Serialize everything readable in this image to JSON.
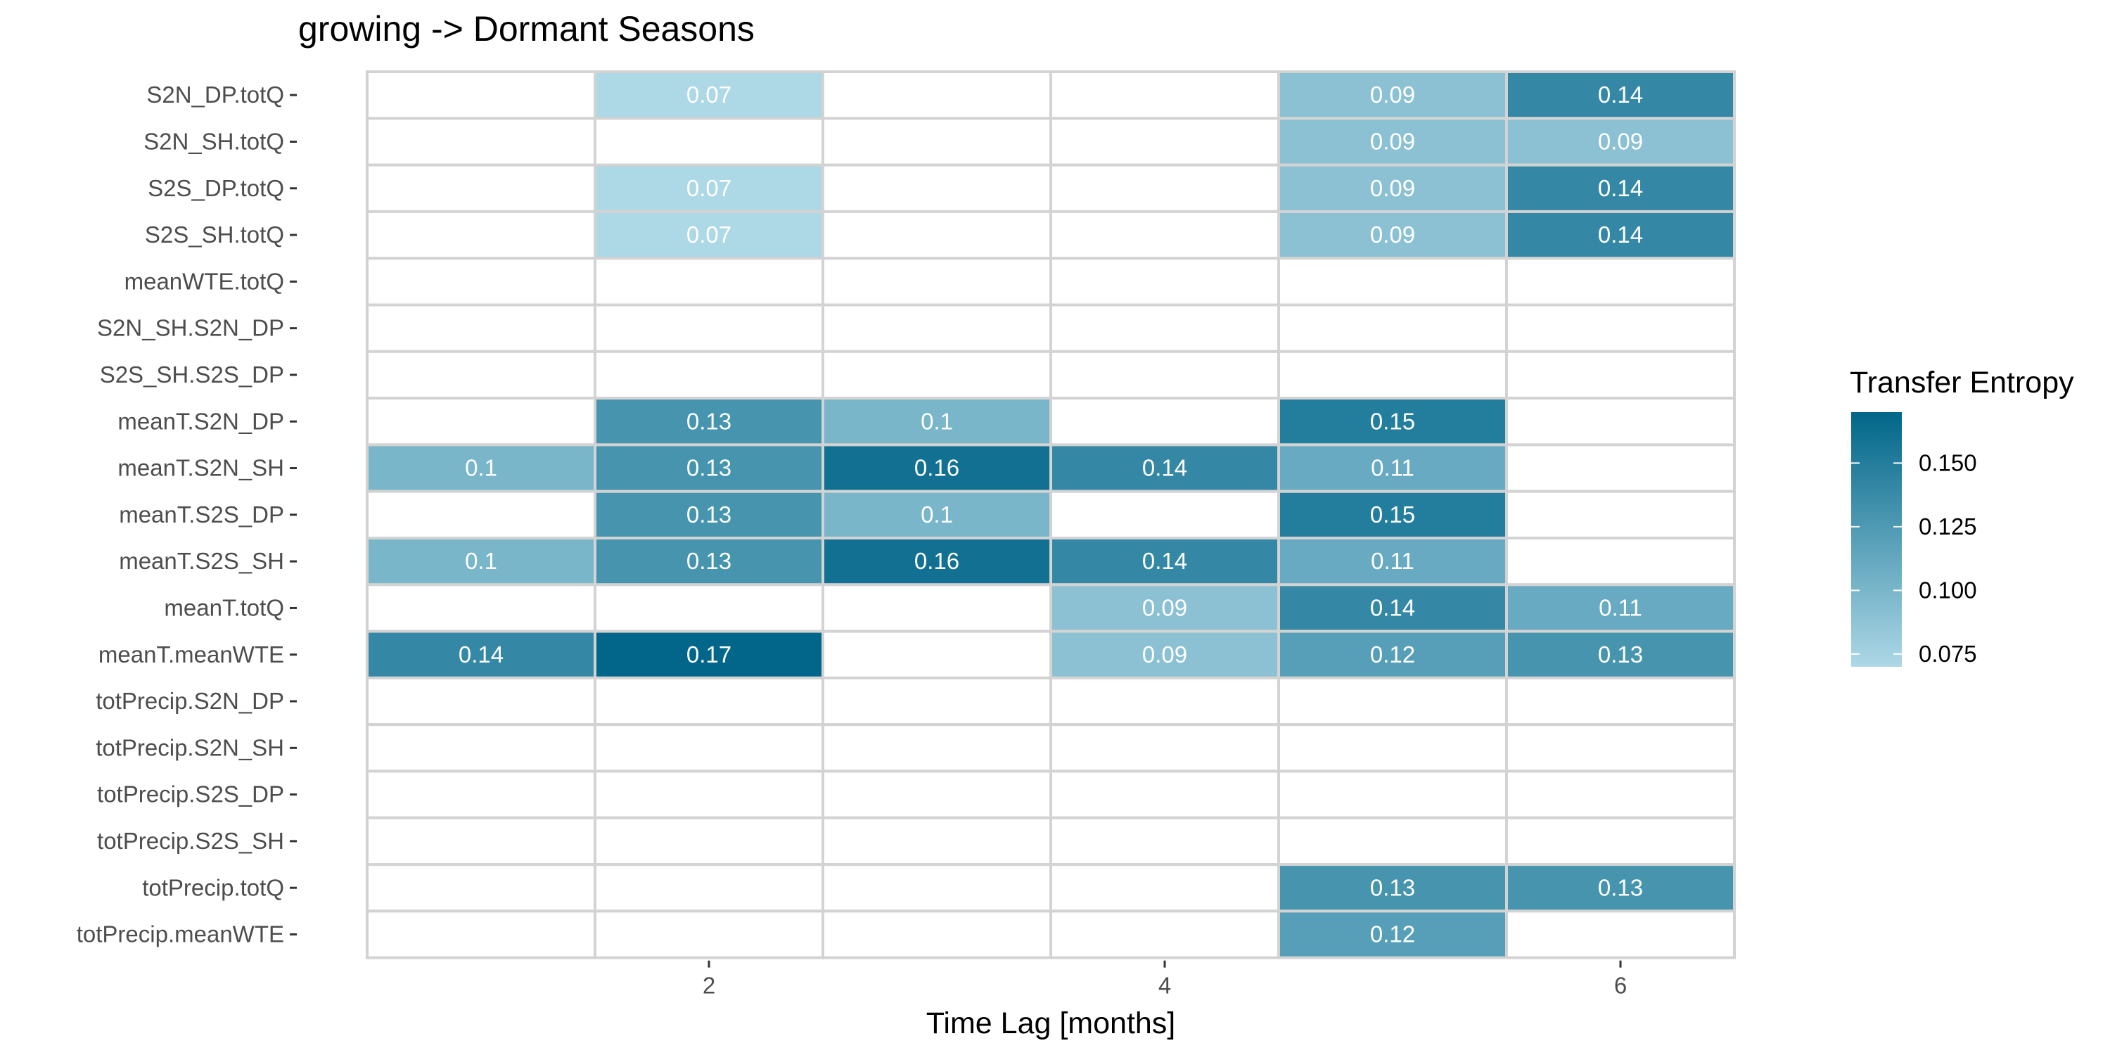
{
  "chart_data": {
    "type": "heatmap",
    "title": "growing -> Dormant Seasons",
    "xlabel": "Time Lag [months]",
    "ylabel": "",
    "x_tick_labels": [
      "2",
      "4",
      "6"
    ],
    "x_tick_values": [
      2,
      4,
      6
    ],
    "x_columns": [
      1,
      2,
      3,
      4,
      5,
      6
    ],
    "rows": [
      "S2N_DP.totQ",
      "S2N_SH.totQ",
      "S2S_DP.totQ",
      "S2S_SH.totQ",
      "meanWTE.totQ",
      "S2N_SH.S2N_DP",
      "S2S_SH.S2S_DP",
      "meanT.S2N_DP",
      "meanT.S2N_SH",
      "meanT.S2S_DP",
      "meanT.S2S_SH",
      "meanT.totQ",
      "meanT.meanWTE",
      "totPrecip.S2N_DP",
      "totPrecip.S2N_SH",
      "totPrecip.S2S_DP",
      "totPrecip.S2S_SH",
      "totPrecip.totQ",
      "totPrecip.meanWTE"
    ],
    "values": [
      [
        null,
        0.07,
        null,
        null,
        0.09,
        0.14
      ],
      [
        null,
        null,
        null,
        null,
        0.09,
        0.09
      ],
      [
        null,
        0.07,
        null,
        null,
        0.09,
        0.14
      ],
      [
        null,
        0.07,
        null,
        null,
        0.09,
        0.14
      ],
      [
        null,
        null,
        null,
        null,
        null,
        null
      ],
      [
        null,
        null,
        null,
        null,
        null,
        null
      ],
      [
        null,
        null,
        null,
        null,
        null,
        null
      ],
      [
        null,
        0.13,
        0.1,
        null,
        0.15,
        null
      ],
      [
        0.1,
        0.13,
        0.16,
        0.14,
        0.11,
        null
      ],
      [
        null,
        0.13,
        0.1,
        null,
        0.15,
        null
      ],
      [
        0.1,
        0.13,
        0.16,
        0.14,
        0.11,
        null
      ],
      [
        null,
        null,
        null,
        0.09,
        0.14,
        0.11
      ],
      [
        0.14,
        0.17,
        null,
        0.09,
        0.12,
        0.13
      ],
      [
        null,
        null,
        null,
        null,
        null,
        null
      ],
      [
        null,
        null,
        null,
        null,
        null,
        null
      ],
      [
        null,
        null,
        null,
        null,
        null,
        null
      ],
      [
        null,
        null,
        null,
        null,
        null,
        null
      ],
      [
        null,
        null,
        null,
        null,
        0.13,
        0.13
      ],
      [
        null,
        null,
        null,
        null,
        0.12,
        null
      ]
    ],
    "cell_labels": [
      [
        null,
        "0.07",
        null,
        null,
        "0.09",
        "0.14"
      ],
      [
        null,
        null,
        null,
        null,
        "0.09",
        "0.09"
      ],
      [
        null,
        "0.07",
        null,
        null,
        "0.09",
        "0.14"
      ],
      [
        null,
        "0.07",
        null,
        null,
        "0.09",
        "0.14"
      ],
      [
        null,
        null,
        null,
        null,
        null,
        null
      ],
      [
        null,
        null,
        null,
        null,
        null,
        null
      ],
      [
        null,
        null,
        null,
        null,
        null,
        null
      ],
      [
        null,
        "0.13",
        "0.1",
        null,
        "0.15",
        null
      ],
      [
        "0.1",
        "0.13",
        "0.16",
        "0.14",
        "0.11",
        null
      ],
      [
        null,
        "0.13",
        "0.1",
        null,
        "0.15",
        null
      ],
      [
        "0.1",
        "0.13",
        "0.16",
        "0.14",
        "0.11",
        null
      ],
      [
        null,
        null,
        null,
        "0.09",
        "0.14",
        "0.11"
      ],
      [
        "0.14",
        "0.17",
        null,
        "0.09",
        "0.12",
        "0.13"
      ],
      [
        null,
        null,
        null,
        null,
        null,
        null
      ],
      [
        null,
        null,
        null,
        null,
        null,
        null
      ],
      [
        null,
        null,
        null,
        null,
        null,
        null
      ],
      [
        null,
        null,
        null,
        null,
        null,
        null
      ],
      [
        null,
        null,
        null,
        null,
        "0.13",
        "0.13"
      ],
      [
        null,
        null,
        null,
        null,
        "0.12",
        null
      ]
    ],
    "legend": {
      "title": "Transfer Entropy",
      "position": "right",
      "ticks": [
        0.075,
        0.1,
        0.125,
        0.15
      ],
      "tick_labels": [
        "0.075",
        "0.100",
        "0.125",
        "0.150"
      ],
      "range": [
        0.07,
        0.17
      ],
      "color_low": "#add8e6",
      "color_high": "#016689"
    },
    "empty_cell_color": "#ffffff",
    "grid_color": "#d3d3d3"
  }
}
